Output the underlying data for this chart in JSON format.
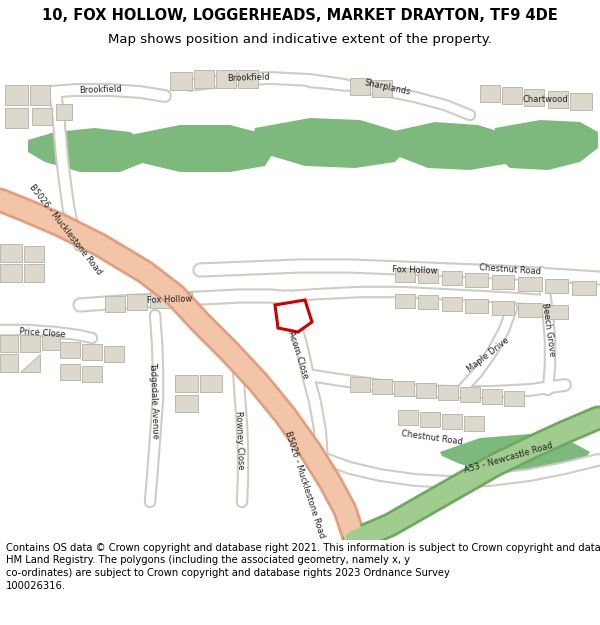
{
  "title": "10, FOX HOLLOW, LOGGERHEADS, MARKET DRAYTON, TF9 4DE",
  "subtitle": "Map shows position and indicative extent of the property.",
  "footer_text": "Contains OS data © Crown copyright and database right 2021. This information is subject to Crown copyright and database rights 2023 and is reproduced with the permission of\nHM Land Registry. The polygons (including the associated geometry, namely x, y\nco-ordinates) are subject to Crown copyright and database rights 2023 Ordnance Survey\n100026316.",
  "map_bg": "#f4f0e8",
  "road_white": "#ffffff",
  "road_gray": "#d0ccc4",
  "building_fill": "#ddd8cc",
  "building_edge": "#bcb8b0",
  "green_fill": "#7db87d",
  "b5026_fill": "#f2c4a8",
  "b5026_edge": "#e0a080",
  "a53_fill": "#a0cc90",
  "a53_edge": "#70a860",
  "plot_fill": "#ffffff",
  "plot_edge": "#cc0000",
  "header_bg": "#ffffff",
  "text_color": "#222222",
  "title_fs": 10.5,
  "subtitle_fs": 9.5,
  "footer_fs": 7.2,
  "label_fs": 6.0
}
